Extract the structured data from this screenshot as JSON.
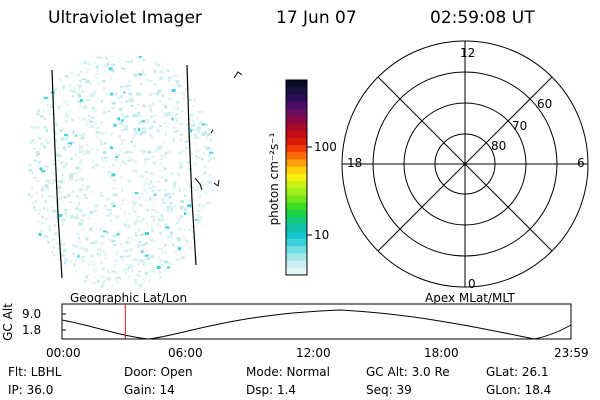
{
  "header": {
    "instrument": "Ultraviolet Imager",
    "date": "17 Jun 07",
    "time": "02:59:08 UT"
  },
  "colorbar": {
    "unit_label": "photon cm⁻²s⁻¹",
    "ticks": [
      "100",
      "10"
    ],
    "colors": [
      "#0a0a28",
      "#1a1040",
      "#2a0f58",
      "#4a0e68",
      "#6a0c60",
      "#8a0a48",
      "#a80a2a",
      "#c40c14",
      "#dc1a08",
      "#f23a06",
      "#fb6c08",
      "#fd9e0a",
      "#fdd20c",
      "#f4f20e",
      "#c8f214",
      "#9cee16",
      "#6ee618",
      "#3edc20",
      "#1cd24a",
      "#12c87c",
      "#10c0a8",
      "#14c4cc",
      "#3cd0dc",
      "#70dce4",
      "#a0e6ea",
      "#c8eef0",
      "#e2f6f6"
    ]
  },
  "polar": {
    "labels": {
      "top": "12",
      "left": "18",
      "right": "6",
      "bottom": "0"
    },
    "lat_labels": [
      "60",
      "70",
      "80"
    ]
  },
  "timeline": {
    "left_label": "Geographic Lat/Lon",
    "right_label": "Apex MLat/MLT",
    "axis_label": "GC Alt",
    "y_ticks": [
      "9.0",
      "1.8"
    ],
    "x_ticks": [
      "00:00",
      "06:00",
      "12:00",
      "18:00",
      "23:59"
    ],
    "marker_time": "02:59",
    "marker_color": "#d01818"
  },
  "info": {
    "row1": {
      "filter": "Flt: LBHL",
      "door": "Door: Open",
      "mode": "Mode: Normal",
      "gc_alt": "GC Alt: 3.0 Re",
      "glat": "GLat:  26.1"
    },
    "row2": {
      "ip": "IP: 36.0",
      "gain": "Gain: 14",
      "dsp": "Dsp:     1.4",
      "seq": "Seq: 39",
      "glon": "GLon:  18.4"
    }
  }
}
